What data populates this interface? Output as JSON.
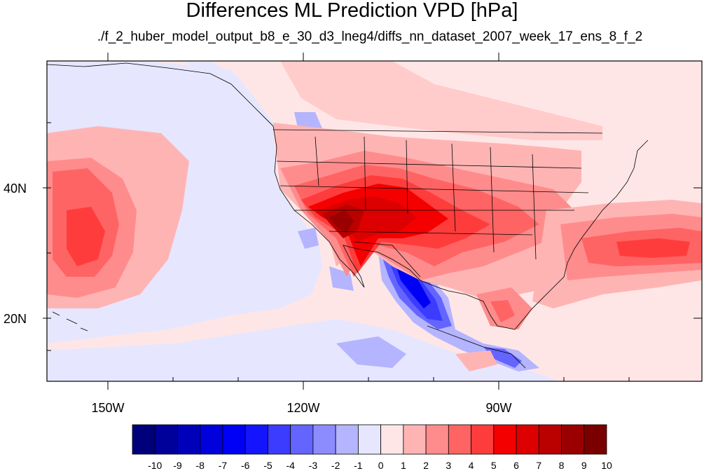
{
  "title": "Differences ML Prediction VPD [hPa]",
  "subtitle": "./f_2_huber_model_output_b8_e_30_d3_lneg4/diffs_nn_dataset_2007_week_17_ens_8_f_2",
  "axes": {
    "x_labels": [
      "150W",
      "120W",
      "90W"
    ],
    "y_labels": [
      "40N",
      "20N"
    ]
  },
  "colorbar": {
    "labels": [
      "-10",
      "-9",
      "-8",
      "-7",
      "-6",
      "-5",
      "-4",
      "-3",
      "-2",
      "-1",
      "0",
      "1",
      "2",
      "3",
      "4",
      "5",
      "6",
      "7",
      "8",
      "9",
      "10"
    ],
    "colors": [
      "#00007a",
      "#00009a",
      "#0000bb",
      "#0000dd",
      "#0000f5",
      "#1414ff",
      "#3c3cff",
      "#6464ff",
      "#8c8cff",
      "#b4b4ff",
      "#e6e6ff",
      "#ffe6e6",
      "#ffb4b4",
      "#ff8c8c",
      "#ff6464",
      "#ff3c3c",
      "#f50000",
      "#dd0000",
      "#bb0000",
      "#9a0000",
      "#7a0000"
    ]
  },
  "colors": {
    "base_positive": "#ffe6e6",
    "base_negative": "#e6e6ff",
    "border": "#000000"
  }
}
